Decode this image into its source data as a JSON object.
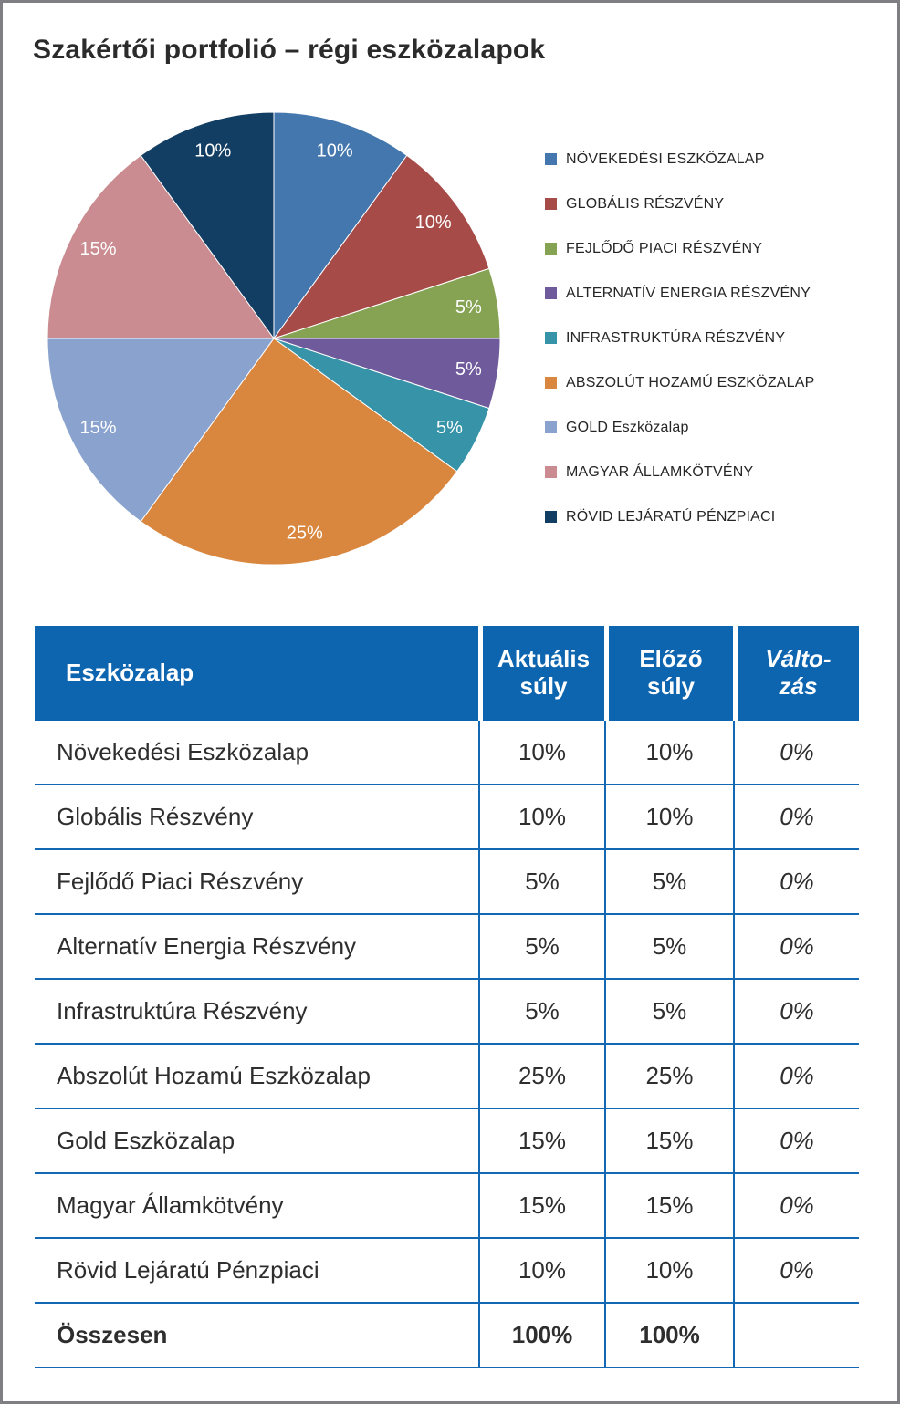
{
  "title": "Szakértői portfolió – régi eszközalapok",
  "chart_data": {
    "type": "pie",
    "title": "Szakértői portfolió – régi eszközalapok",
    "start_angle_deg": 0,
    "direction": "clockwise",
    "data_labels": "percent",
    "legend_position": "right",
    "slices": [
      {
        "label": "NÖVEKEDÉSI ESZKÖZALAP",
        "value": 10,
        "color": "#4377ad"
      },
      {
        "label": "GLOBÁLIS RÉSZVÉNY",
        "value": 10,
        "color": "#a74b48"
      },
      {
        "label": "FEJLŐDŐ PIACI RÉSZVÉNY",
        "value": 5,
        "color": "#85a353"
      },
      {
        "label": "ALTERNATÍV ENERGIA RÉSZVÉNY",
        "value": 5,
        "color": "#6f5a9b"
      },
      {
        "label": "INFRASTRUKTÚRA RÉSZVÉNY",
        "value": 5,
        "color": "#3793a8"
      },
      {
        "label": "ABSZOLÚT HOZAMÚ ESZKÖZALAP",
        "value": 25,
        "color": "#d9863e"
      },
      {
        "label": "GOLD Eszközalap",
        "value": 15,
        "color": "#8aa3ce"
      },
      {
        "label": "MAGYAR ÁLLAMKÖTVÉNY",
        "value": 15,
        "color": "#ca8c90"
      },
      {
        "label": "RÖVID LEJÁRATÚ PÉNZPIACI",
        "value": 10,
        "color": "#133e63"
      }
    ]
  },
  "table": {
    "header_bg": "#0d64af",
    "line_color": "#1268b3",
    "headers": [
      "Eszközalap",
      "Aktuális\nsúly",
      "Előző\nsúly",
      "Válto-\nzás"
    ],
    "rows": [
      {
        "name": "Növekedési Eszközalap",
        "current": "10%",
        "previous": "10%",
        "change": "0%"
      },
      {
        "name": "Globális Részvény",
        "current": "10%",
        "previous": "10%",
        "change": "0%"
      },
      {
        "name": "Fejlődő Piaci Részvény",
        "current": "5%",
        "previous": "5%",
        "change": "0%"
      },
      {
        "name": "Alternatív Energia Részvény",
        "current": "5%",
        "previous": "5%",
        "change": "0%"
      },
      {
        "name": "Infrastruktúra Részvény",
        "current": "5%",
        "previous": "5%",
        "change": "0%"
      },
      {
        "name": "Abszolút Hozamú Eszközalap",
        "current": "25%",
        "previous": "25%",
        "change": "0%"
      },
      {
        "name": "Gold Eszközalap",
        "current": "15%",
        "previous": "15%",
        "change": "0%"
      },
      {
        "name": "Magyar Államkötvény",
        "current": "15%",
        "previous": "15%",
        "change": "0%"
      },
      {
        "name": "Rövid Lejáratú Pénzpiaci",
        "current": "10%",
        "previous": "10%",
        "change": "0%"
      }
    ],
    "total_row": {
      "name": "Összesen",
      "current": "100%",
      "previous": "100%",
      "change": ""
    }
  }
}
